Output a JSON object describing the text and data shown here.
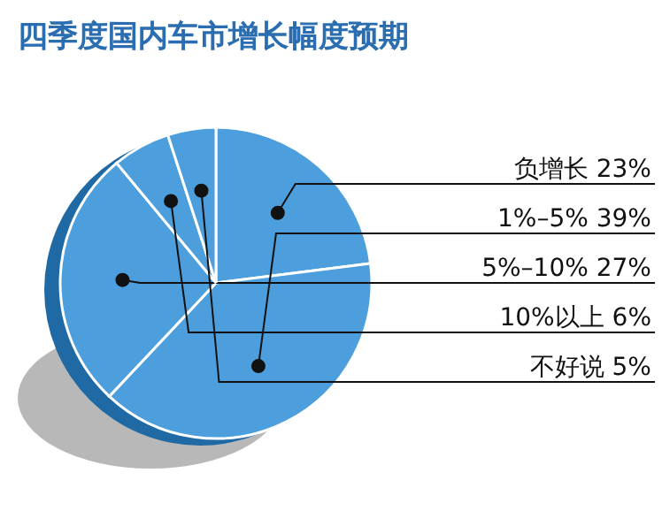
{
  "chart_data": {
    "type": "pie",
    "title": "四季度国内车市增长幅度预期",
    "categories": [
      "负增长",
      "1%–5%",
      "5%–10%",
      "10%以上",
      "不好说"
    ],
    "values": [
      23,
      39,
      27,
      6,
      5
    ],
    "value_labels": [
      "23%",
      "39%",
      "27%",
      "6%",
      "5%"
    ],
    "colors": [
      "#4c9fdc",
      "#4c9fdc",
      "#4c9fdc",
      "#4c9fdc",
      "#4c9fdc"
    ]
  }
}
